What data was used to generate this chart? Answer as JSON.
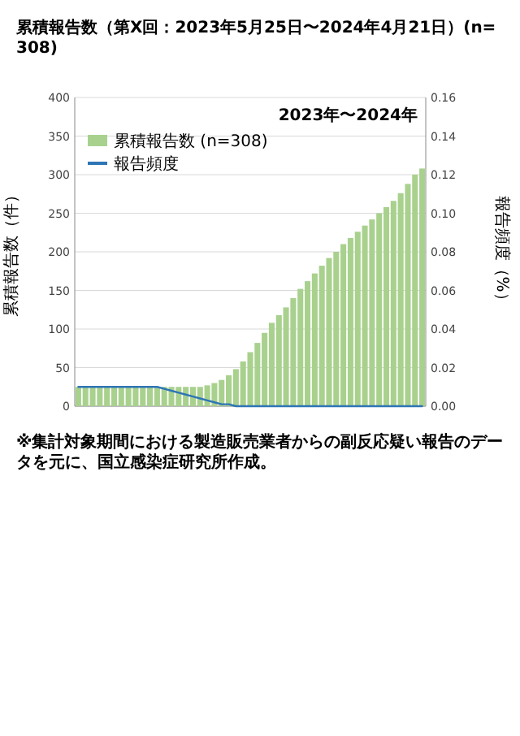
{
  "chart_data": {
    "type": "bar",
    "title": "累積報告数（第X回：2023年5月25日〜2024年4月21日）(n=308)",
    "ylabel": "累積報告数（件）",
    "y2label": "報告頻度（%）",
    "categories": [
      null,
      null,
      null,
      null,
      null,
      null,
      null,
      null,
      null,
      null,
      null,
      null,
      null,
      null,
      null,
      null,
      null,
      null,
      null,
      null,
      null,
      null,
      null,
      null,
      null,
      null,
      null,
      null,
      null,
      null,
      null,
      null,
      null,
      null,
      null,
      null,
      null,
      null,
      null,
      null,
      null,
      null,
      null,
      null,
      null,
      null,
      null,
      null,
      null
    ],
    "series": [
      {
        "name": "累積報告数 (n=308)",
        "color": "#a9d18e",
        "values": [
          25,
          25,
          25,
          25,
          25,
          25,
          25,
          25,
          25,
          25,
          25,
          25,
          25,
          25,
          25,
          25,
          25,
          25,
          27,
          30,
          34,
          40,
          48,
          58,
          70,
          82,
          95,
          108,
          118,
          128,
          140,
          152,
          162,
          172,
          182,
          192,
          200,
          210,
          218,
          226,
          234,
          242,
          250,
          258,
          266,
          276,
          288,
          300,
          308
        ]
      },
      {
        "name": "報告頻度",
        "type": "line",
        "axis": "y2",
        "color": "#2e75b6",
        "values": [
          0.01,
          0.01,
          0.01,
          0.01,
          0.01,
          0.01,
          0.01,
          0.01,
          0.01,
          0.01,
          0.01,
          0.01,
          0.009,
          0.008,
          0.007,
          0.006,
          0.005,
          0.004,
          0.003,
          0.002,
          0.001,
          0.001,
          0,
          0,
          0,
          0,
          0,
          0,
          0,
          0,
          0,
          0,
          0,
          0,
          0,
          0,
          0,
          0,
          0,
          0,
          0,
          0,
          0,
          0,
          0,
          0,
          0,
          0,
          0
        ]
      }
    ],
    "ylim": [
      0,
      400
    ],
    "yticks": [
      0,
      50,
      100,
      150,
      200,
      250,
      300,
      350,
      400
    ],
    "y2lim": [
      0,
      0.16
    ],
    "y2ticks": [
      {
        "value": 0,
        "label": "0.00"
      },
      {
        "value": 0.02,
        "label": "0.02"
      },
      {
        "value": 0.04,
        "label": "0.04"
      },
      {
        "value": 0.06,
        "label": "0.06"
      },
      {
        "value": 0.08,
        "label": "0.08"
      },
      {
        "value": 0.1,
        "label": "0.10"
      },
      {
        "value": 0.12,
        "label": "0.12"
      },
      {
        "value": 0.14,
        "label": "0.14"
      },
      {
        "value": 0.16,
        "label": "0.16"
      }
    ],
    "grid": "y",
    "legend": "top left",
    "annotations": [
      "2023年〜2024年",
      "※集計対象期間における製造販売業者からの副反応疑い報告のデータを元に、国立感染症研究所作成。"
    ]
  }
}
